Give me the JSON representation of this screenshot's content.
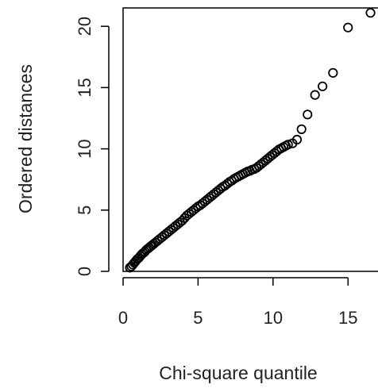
{
  "chart_data": {
    "type": "scatter",
    "title": "",
    "xlabel": "Chi-square quantile",
    "ylabel": "Ordered distances",
    "xlim": [
      0,
      17
    ],
    "ylim": [
      0,
      21.5
    ],
    "x_ticks": [
      0,
      5,
      10,
      15
    ],
    "x_tick_labels": [
      "0",
      "5",
      "10",
      "15"
    ],
    "y_ticks": [
      0,
      5,
      10,
      15,
      20
    ],
    "y_tick_labels": [
      "0",
      "5",
      "10",
      "15",
      "20"
    ],
    "grid": false,
    "legend": "none",
    "marker": "open-circle",
    "marker_color": "#000000",
    "series": [
      {
        "x": [
          0.45,
          0.55,
          0.65,
          0.75,
          0.85,
          0.95,
          1.05,
          1.15,
          1.25,
          1.35,
          1.45,
          1.55,
          1.65,
          1.75,
          1.85,
          1.95,
          2.05,
          2.15,
          2.3,
          2.45,
          2.6,
          2.75,
          2.9,
          3.05,
          3.2,
          3.35,
          3.5,
          3.65,
          3.8,
          3.95,
          4.1,
          4.25,
          4.4,
          4.55,
          4.7,
          4.85,
          5.0,
          5.15,
          5.3,
          5.45,
          5.6,
          5.75,
          5.9,
          6.05,
          6.2,
          6.35,
          6.5,
          6.65,
          6.8,
          6.95,
          7.1,
          7.25,
          7.4,
          7.55,
          7.7,
          7.85,
          8.0,
          8.15,
          8.3,
          8.45,
          8.6,
          8.75,
          8.9,
          9.05,
          9.2,
          9.35,
          9.5,
          9.65,
          9.8,
          9.95,
          10.1,
          10.25,
          10.4,
          10.55,
          10.7,
          10.85,
          11.0,
          11.3,
          11.6,
          11.9,
          12.3,
          12.8,
          13.3,
          14.0,
          15.0,
          16.5
        ],
        "y": [
          0.3,
          0.4,
          0.55,
          0.7,
          0.85,
          1.0,
          1.1,
          1.25,
          1.4,
          1.5,
          1.6,
          1.75,
          1.85,
          1.95,
          2.05,
          2.15,
          2.25,
          2.35,
          2.5,
          2.65,
          2.8,
          2.95,
          3.1,
          3.25,
          3.4,
          3.55,
          3.7,
          3.85,
          4.0,
          4.15,
          4.35,
          4.55,
          4.7,
          4.85,
          5.0,
          5.15,
          5.3,
          5.4,
          5.55,
          5.7,
          5.85,
          6.0,
          6.15,
          6.3,
          6.45,
          6.6,
          6.75,
          6.9,
          7.0,
          7.15,
          7.3,
          7.4,
          7.55,
          7.65,
          7.75,
          7.85,
          7.95,
          8.05,
          8.15,
          8.2,
          8.3,
          8.35,
          8.45,
          8.6,
          8.75,
          8.9,
          9.05,
          9.2,
          9.35,
          9.5,
          9.65,
          9.8,
          9.95,
          10.05,
          10.15,
          10.25,
          10.35,
          10.45,
          10.75,
          11.6,
          12.8,
          14.4,
          15.1,
          16.2,
          19.9,
          21.1
        ]
      }
    ]
  }
}
